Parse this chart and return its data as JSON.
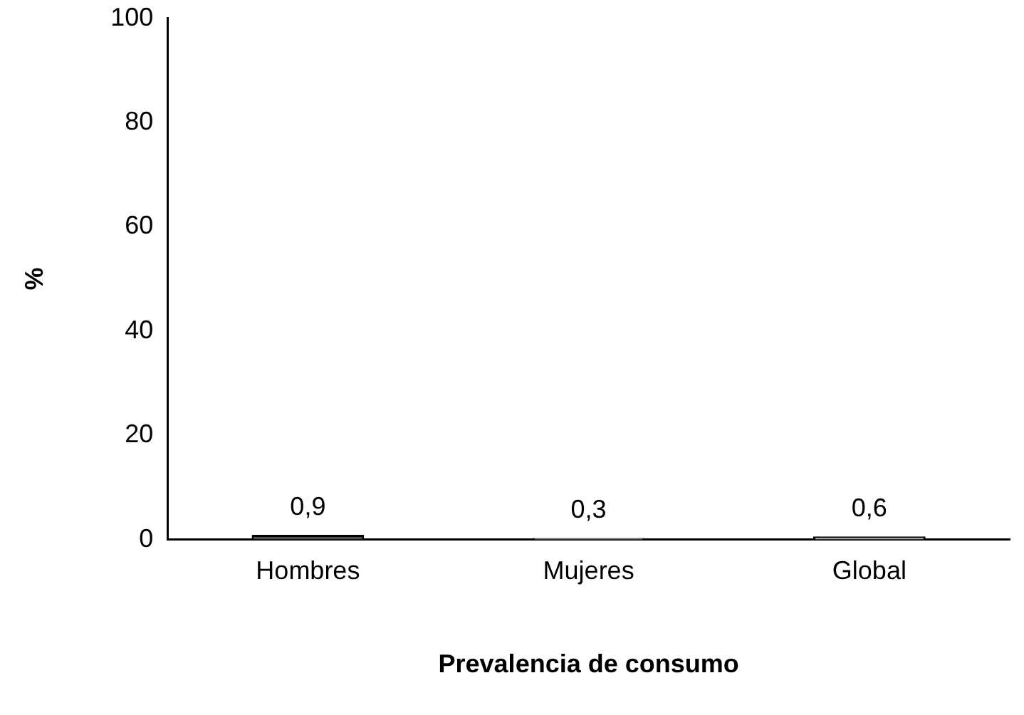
{
  "chart_data": {
    "type": "bar",
    "xlabel": "Prevalencia de consumo",
    "ylabel": "%",
    "categories": [
      "Hombres",
      "Mujeres",
      "Global"
    ],
    "values": [
      0.9,
      0.3,
      0.6
    ],
    "colors": [
      "#4d4d4d",
      "#d0d0d0",
      "#a6a6a6"
    ],
    "value_labels": [
      "0,9",
      "0,3",
      "0,6"
    ],
    "ylim": [
      0,
      100
    ],
    "yticks": [
      0,
      20,
      40,
      60,
      80,
      100
    ],
    "grid": false,
    "legend": false
  }
}
